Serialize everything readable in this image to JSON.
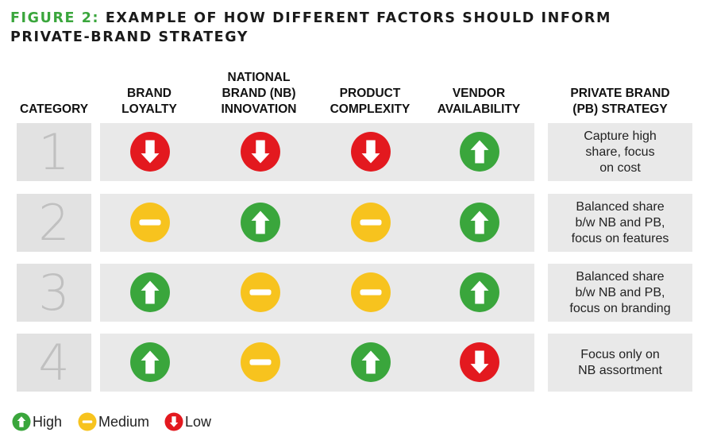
{
  "title": {
    "prefix": "FIGURE 2:",
    "text": "EXAMPLE OF HOW DIFFERENT FACTORS SHOULD INFORM PRIVATE-BRAND STRATEGY"
  },
  "headers": [
    "CATEGORY",
    "BRAND\nLOYALTY",
    "NATIONAL\nBRAND (NB)\nINNOVATION",
    "PRODUCT\nCOMPLEXITY",
    "VENDOR\nAVAILABILITY",
    "PRIVATE BRAND\n(PB) STRATEGY"
  ],
  "rows": [
    {
      "category": "1",
      "ratings": [
        "low",
        "low",
        "low",
        "high"
      ],
      "strategy": "Capture high\nshare, focus\non cost"
    },
    {
      "category": "2",
      "ratings": [
        "medium",
        "high",
        "medium",
        "high"
      ],
      "strategy": "Balanced share\nb/w NB and PB,\nfocus on features"
    },
    {
      "category": "3",
      "ratings": [
        "high",
        "medium",
        "medium",
        "high"
      ],
      "strategy": "Balanced share\nb/w NB and PB,\nfocus on branding"
    },
    {
      "category": "4",
      "ratings": [
        "high",
        "medium",
        "high",
        "low"
      ],
      "strategy": "Focus only on\nNB assortment"
    }
  ],
  "legend": [
    {
      "level": "high",
      "label": "High"
    },
    {
      "level": "medium",
      "label": "Medium"
    },
    {
      "level": "low",
      "label": "Low"
    }
  ],
  "colors": {
    "high": "#3aa63c",
    "medium": "#f7c31e",
    "low": "#e3191f",
    "title_accent": "#3aa63c"
  },
  "icons": {
    "high": "up-arrow-icon",
    "medium": "minus-icon",
    "low": "down-arrow-icon"
  }
}
